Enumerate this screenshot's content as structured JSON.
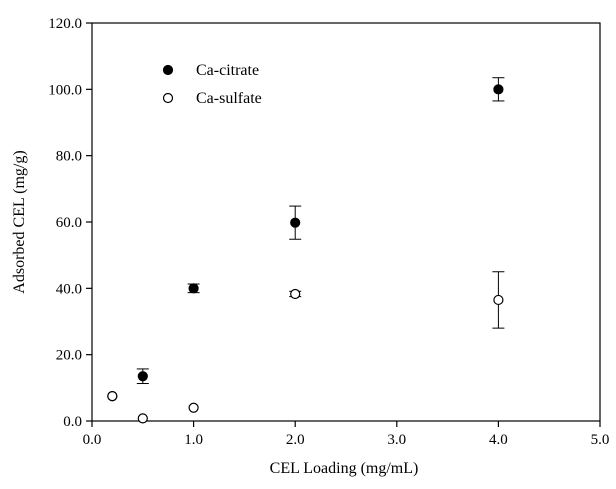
{
  "chart_data": {
    "type": "scatter",
    "title": "",
    "xlabel": "CEL Loading  (mg/mL)",
    "ylabel": "Adsorbed CEL (mg/g)",
    "xlim": [
      0,
      5
    ],
    "ylim": [
      0,
      120
    ],
    "x_ticks": [
      "0.0",
      "1.0",
      "2.0",
      "3.0",
      "4.0",
      "5.0"
    ],
    "y_ticks": [
      "0.0",
      "20.0",
      "40.0",
      "60.0",
      "80.0",
      "100.0",
      "120.0"
    ],
    "grid": false,
    "legend_position": "top-left",
    "series": [
      {
        "name": "Ca-citrate",
        "marker": "filled-circle",
        "color": "#000000",
        "points": [
          {
            "x": 0.2,
            "y": 7.5,
            "err": 0
          },
          {
            "x": 0.5,
            "y": 13.5,
            "err": 2.2
          },
          {
            "x": 1.0,
            "y": 40.0,
            "err": 1.3
          },
          {
            "x": 2.0,
            "y": 59.8,
            "err": 5.0
          },
          {
            "x": 4.0,
            "y": 100.0,
            "err": 3.5
          }
        ]
      },
      {
        "name": "Ca-sulfate",
        "marker": "open-circle",
        "color": "#000000",
        "points": [
          {
            "x": 0.2,
            "y": 7.5,
            "err": 0
          },
          {
            "x": 0.5,
            "y": 0.8,
            "err": 0
          },
          {
            "x": 1.0,
            "y": 4.0,
            "err": 0
          },
          {
            "x": 2.0,
            "y": 38.3,
            "err": 0.8
          },
          {
            "x": 4.0,
            "y": 36.5,
            "err": 8.5
          }
        ]
      }
    ]
  }
}
